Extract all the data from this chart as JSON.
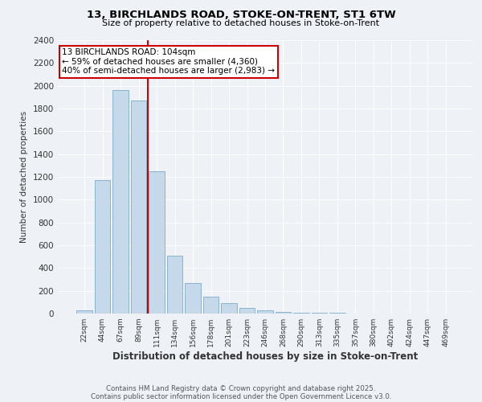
{
  "title_line1": "13, BIRCHLANDS ROAD, STOKE-ON-TRENT, ST1 6TW",
  "title_line2": "Size of property relative to detached houses in Stoke-on-Trent",
  "xlabel": "Distribution of detached houses by size in Stoke-on-Trent",
  "ylabel": "Number of detached properties",
  "categories": [
    "22sqm",
    "44sqm",
    "67sqm",
    "89sqm",
    "111sqm",
    "134sqm",
    "156sqm",
    "178sqm",
    "201sqm",
    "223sqm",
    "246sqm",
    "268sqm",
    "290sqm",
    "313sqm",
    "335sqm",
    "357sqm",
    "380sqm",
    "402sqm",
    "424sqm",
    "447sqm",
    "469sqm"
  ],
  "values": [
    25,
    1175,
    1960,
    1870,
    1250,
    510,
    270,
    150,
    95,
    50,
    30,
    15,
    10,
    8,
    5,
    3,
    2,
    2,
    1,
    1,
    1
  ],
  "bar_color": "#c5d9ea",
  "bar_edge_color": "#7aaec8",
  "vline_color": "#cc0000",
  "vline_x": 3.5,
  "annotation_text": "13 BIRCHLANDS ROAD: 104sqm\n← 59% of detached houses are smaller (4,360)\n40% of semi-detached houses are larger (2,983) →",
  "annotation_box_color": "#ffffff",
  "annotation_box_edge": "#cc0000",
  "ylim": [
    0,
    2400
  ],
  "yticks": [
    0,
    200,
    400,
    600,
    800,
    1000,
    1200,
    1400,
    1600,
    1800,
    2000,
    2200,
    2400
  ],
  "plot_bg_color": "#eef2f7",
  "fig_bg_color": "#eef2f7",
  "grid_color": "#ffffff",
  "footer_line1": "Contains HM Land Registry data © Crown copyright and database right 2025.",
  "footer_line2": "Contains public sector information licensed under the Open Government Licence v3.0."
}
